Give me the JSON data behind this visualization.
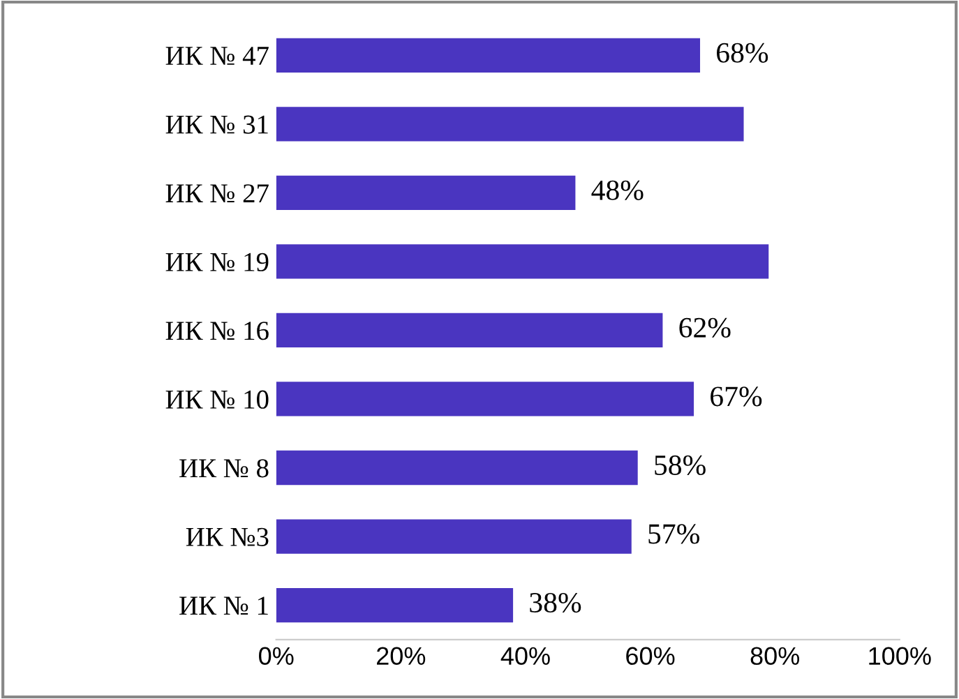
{
  "chart_data": {
    "type": "bar",
    "orientation": "horizontal",
    "categories": [
      "ИК № 47",
      "ИК № 31",
      "ИК № 27",
      "ИК № 19",
      "ИК № 16",
      "ИК № 10",
      "ИК № 8",
      "ИК №3",
      "ИК № 1"
    ],
    "values": [
      68,
      75,
      48,
      79,
      62,
      67,
      58,
      57,
      38
    ],
    "value_labels": [
      "68%",
      null,
      "48%",
      null,
      "62%",
      "67%",
      "58%",
      "57%",
      "38%"
    ],
    "color": "#4a35c0",
    "xlim": [
      0,
      100
    ],
    "xticks": [
      {
        "value": 0,
        "label": "0%"
      },
      {
        "value": 20,
        "label": "20%"
      },
      {
        "value": 40,
        "label": "40%"
      },
      {
        "value": 60,
        "label": "60%"
      },
      {
        "value": 80,
        "label": "80%"
      },
      {
        "value": 100,
        "label": "100%"
      }
    ],
    "grid": false,
    "legend": false
  }
}
